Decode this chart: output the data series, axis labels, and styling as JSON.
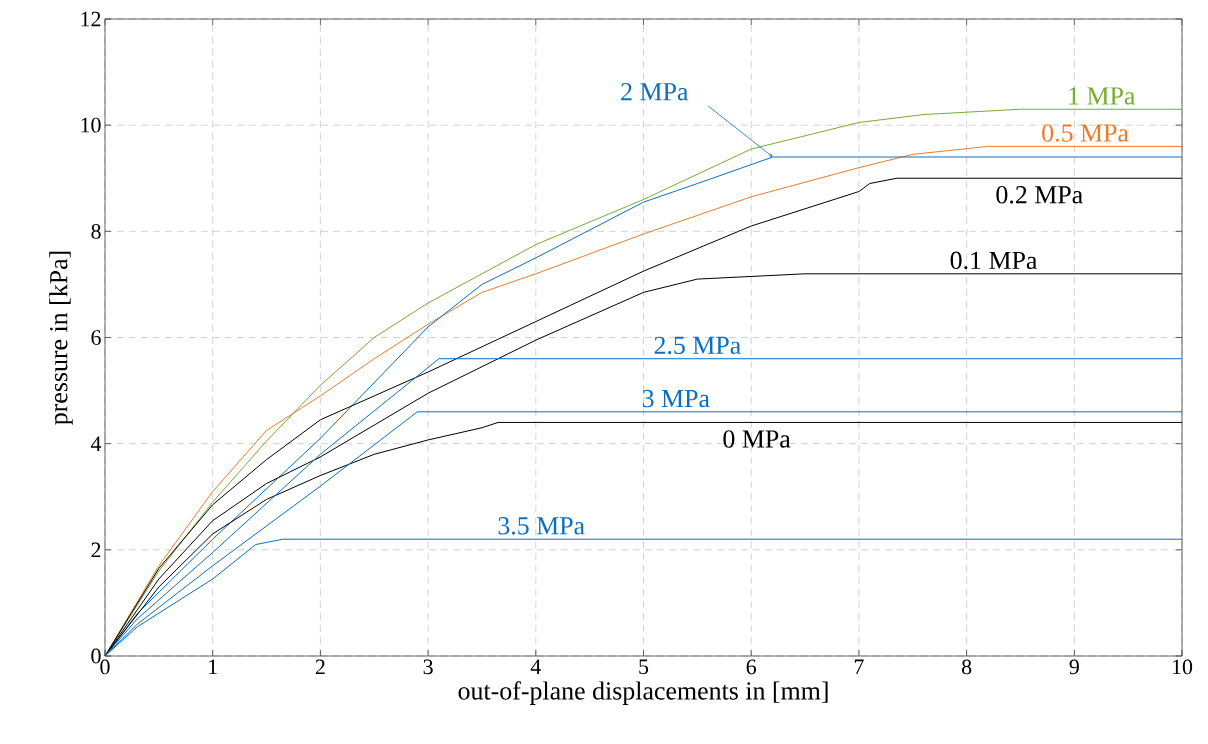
{
  "chart_data": {
    "type": "line",
    "xlabel": "out-of-plane displacements in [mm]",
    "ylabel": "pressure in [kPa]",
    "xlim": [
      0,
      10
    ],
    "ylim": [
      0,
      12
    ],
    "xticks": [
      0,
      1,
      2,
      3,
      4,
      5,
      6,
      7,
      8,
      9,
      10
    ],
    "yticks": [
      0,
      2,
      4,
      6,
      8,
      10,
      12
    ],
    "grid": true,
    "series": [
      {
        "name": "1 MPa",
        "color": "#77ac30",
        "x": [
          0,
          0.5,
          1,
          1.5,
          2,
          2.5,
          3,
          4,
          5,
          6,
          7,
          7.6,
          8.5,
          10
        ],
        "values": [
          0,
          1.6,
          2.9,
          4.05,
          5.1,
          6.0,
          6.65,
          7.75,
          8.6,
          9.55,
          10.05,
          10.2,
          10.3,
          10.3
        ]
      },
      {
        "name": "0.5 MPa",
        "color": "#ec7a2c",
        "x": [
          0,
          0.5,
          1,
          1.5,
          2,
          2.5,
          3,
          3.5,
          4,
          5,
          6,
          7,
          7.5,
          8.2,
          10
        ],
        "values": [
          0,
          1.7,
          3.1,
          4.25,
          4.9,
          5.6,
          6.25,
          6.85,
          7.2,
          7.95,
          8.65,
          9.2,
          9.45,
          9.6,
          9.6
        ]
      },
      {
        "name": "2 MPa",
        "color": "#0b6fc0",
        "x": [
          0,
          0.3,
          1,
          2,
          3,
          3.5,
          4,
          5,
          5.5,
          6.2,
          10
        ],
        "values": [
          0,
          0.8,
          2.2,
          4.1,
          6.2,
          7.0,
          7.5,
          8.55,
          8.9,
          9.4,
          9.4
        ]
      },
      {
        "name": "0.2 MPa",
        "color": "#000000",
        "x": [
          0,
          0.5,
          1,
          1.5,
          2,
          2.5,
          3,
          4,
          5,
          6,
          7,
          7.1,
          7.35,
          10
        ],
        "values": [
          0,
          1.65,
          2.85,
          3.7,
          4.45,
          4.9,
          5.35,
          6.3,
          7.25,
          8.1,
          8.75,
          8.9,
          9.0,
          9.0
        ]
      },
      {
        "name": "0.1 MPa",
        "color": "#000000",
        "x": [
          0,
          0.5,
          1,
          1.5,
          2,
          2.5,
          3,
          4,
          5,
          5.5,
          6.5,
          10
        ],
        "values": [
          0,
          1.45,
          2.55,
          3.25,
          3.75,
          4.35,
          4.95,
          5.95,
          6.85,
          7.1,
          7.2,
          7.2
        ]
      },
      {
        "name": "0 MPa",
        "color": "#000000",
        "x": [
          0,
          0.5,
          1,
          1.5,
          2,
          2.5,
          3,
          3.5,
          3.65,
          10
        ],
        "values": [
          0,
          1.3,
          2.3,
          2.95,
          3.4,
          3.8,
          4.07,
          4.3,
          4.4,
          4.4
        ]
      },
      {
        "name": "2.5 MPa",
        "color": "#0b6fc0",
        "x": [
          0,
          0.3,
          1,
          2,
          3.1,
          10
        ],
        "values": [
          0,
          0.7,
          1.95,
          3.8,
          5.6,
          5.6
        ]
      },
      {
        "name": "3 MPa",
        "color": "#0b6fc0",
        "x": [
          0,
          0.3,
          1,
          2,
          2.9,
          10
        ],
        "values": [
          0,
          0.6,
          1.7,
          3.2,
          4.6,
          4.6
        ]
      },
      {
        "name": "3.5 MPa",
        "color": "#0b6fc0",
        "x": [
          0,
          0.3,
          1,
          1.4,
          1.65,
          10
        ],
        "values": [
          0,
          0.55,
          1.45,
          2.1,
          2.2,
          2.2
        ]
      }
    ]
  }
}
